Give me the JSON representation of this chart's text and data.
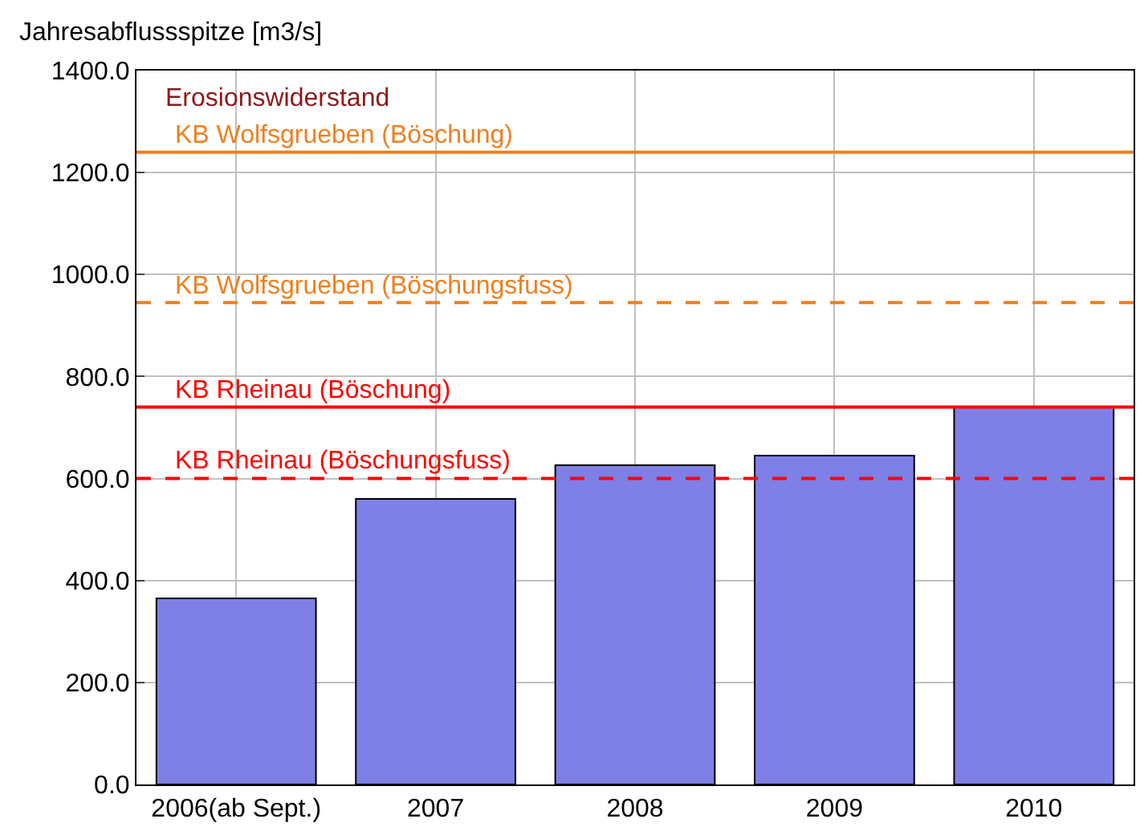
{
  "chart_data": {
    "type": "bar",
    "ylabel": "Jahresabflussspitze [m3/s]",
    "categories": [
      "2006(ab Sept.)",
      "2007",
      "2008",
      "2009",
      "2010"
    ],
    "values": [
      365,
      560,
      626,
      645,
      740
    ],
    "color": "#7f7fe8",
    "ylim": [
      0,
      1400
    ],
    "yticks": [
      {
        "value": 0,
        "label": "0.0"
      },
      {
        "value": 200,
        "label": "200.0"
      },
      {
        "value": 400,
        "label": "400.0"
      },
      {
        "value": 600,
        "label": "600.0"
      },
      {
        "value": 800,
        "label": "800.0"
      },
      {
        "value": 1000,
        "label": "1000.0"
      },
      {
        "value": 1200,
        "label": "1200.0"
      },
      {
        "value": 1400,
        "label": "1400.0"
      }
    ],
    "grid": true,
    "annotations": [
      "Erosionswiderstand"
    ],
    "ref_lines": [
      {
        "axis": "y",
        "value": 1240,
        "label": "KB Wolfsgrueben (Böschung)",
        "color": "#f07f1f",
        "line_style": "solid"
      },
      {
        "axis": "y",
        "value": 945,
        "label": "KB Wolfsgrueben (Böschungsfuss)",
        "color": "#f07f1f",
        "line_style": "dashed"
      },
      {
        "axis": "y",
        "value": 740,
        "label": "KB Rheinau (Böschung)",
        "color": "#ff0000",
        "line_style": "solid"
      },
      {
        "axis": "y",
        "value": 600,
        "label": "KB Rheinau (Böschungsfuss)",
        "color": "#ff0000",
        "line_style": "dashed"
      }
    ]
  }
}
